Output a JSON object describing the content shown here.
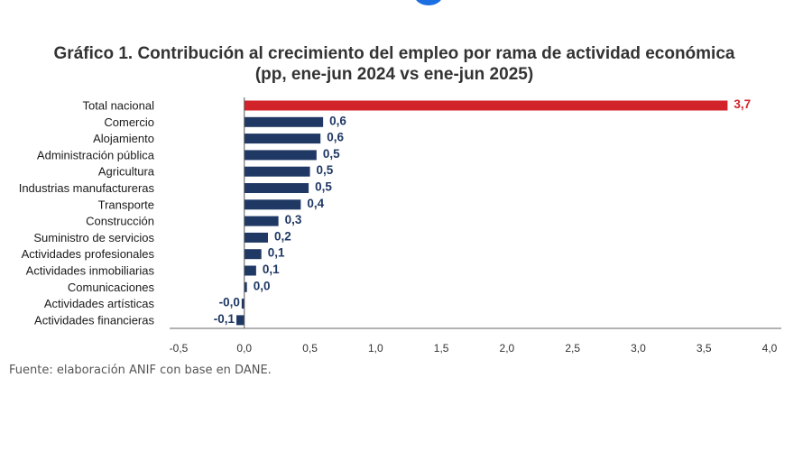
{
  "chart_data": {
    "type": "bar",
    "orientation": "horizontal",
    "title": "Gráfico 1. Contribución al crecimiento del empleo por rama de actividad económica",
    "subtitle": "(pp, ene-jun 2024 vs ene-jun 2025)",
    "categories": [
      "Total nacional",
      "Comercio",
      "Alojamiento",
      "Administración pública",
      "Agricultura",
      "Industrias manufactureras",
      "Transporte",
      "Construcción",
      "Suministro de servicios",
      "Actividades profesionales",
      "Actividades inmobiliarias",
      "Comunicaciones",
      "Actividades artísticas",
      "Actividades financieras"
    ],
    "values": [
      3.68,
      0.6,
      0.58,
      0.55,
      0.5,
      0.49,
      0.43,
      0.26,
      0.18,
      0.13,
      0.09,
      0.02,
      -0.02,
      -0.06
    ],
    "value_labels": [
      "3,7",
      "0,6",
      "0,6",
      "0,5",
      "0,5",
      "0,5",
      "0,4",
      "0,3",
      "0,2",
      "0,1",
      "0,1",
      "0,0",
      "-0,0",
      "-0,1"
    ],
    "highlight_index": 0,
    "colors": {
      "highlight": "#d2232a",
      "default": "#1f3864",
      "highlight_label": "#d2232a",
      "default_label": "#1f3864"
    },
    "xlim": [
      -0.5,
      4.0
    ],
    "xticks": [
      -0.5,
      0.0,
      0.5,
      1.0,
      1.5,
      2.0,
      2.5,
      3.0,
      3.5,
      4.0
    ],
    "xtick_labels": [
      "-0,5",
      "0,0",
      "0,5",
      "1,0",
      "1,5",
      "2,0",
      "2,5",
      "3,0",
      "3,5",
      "4,0"
    ],
    "grid": false,
    "source": "Fuente: elaboración ANIF con base en DANE."
  }
}
